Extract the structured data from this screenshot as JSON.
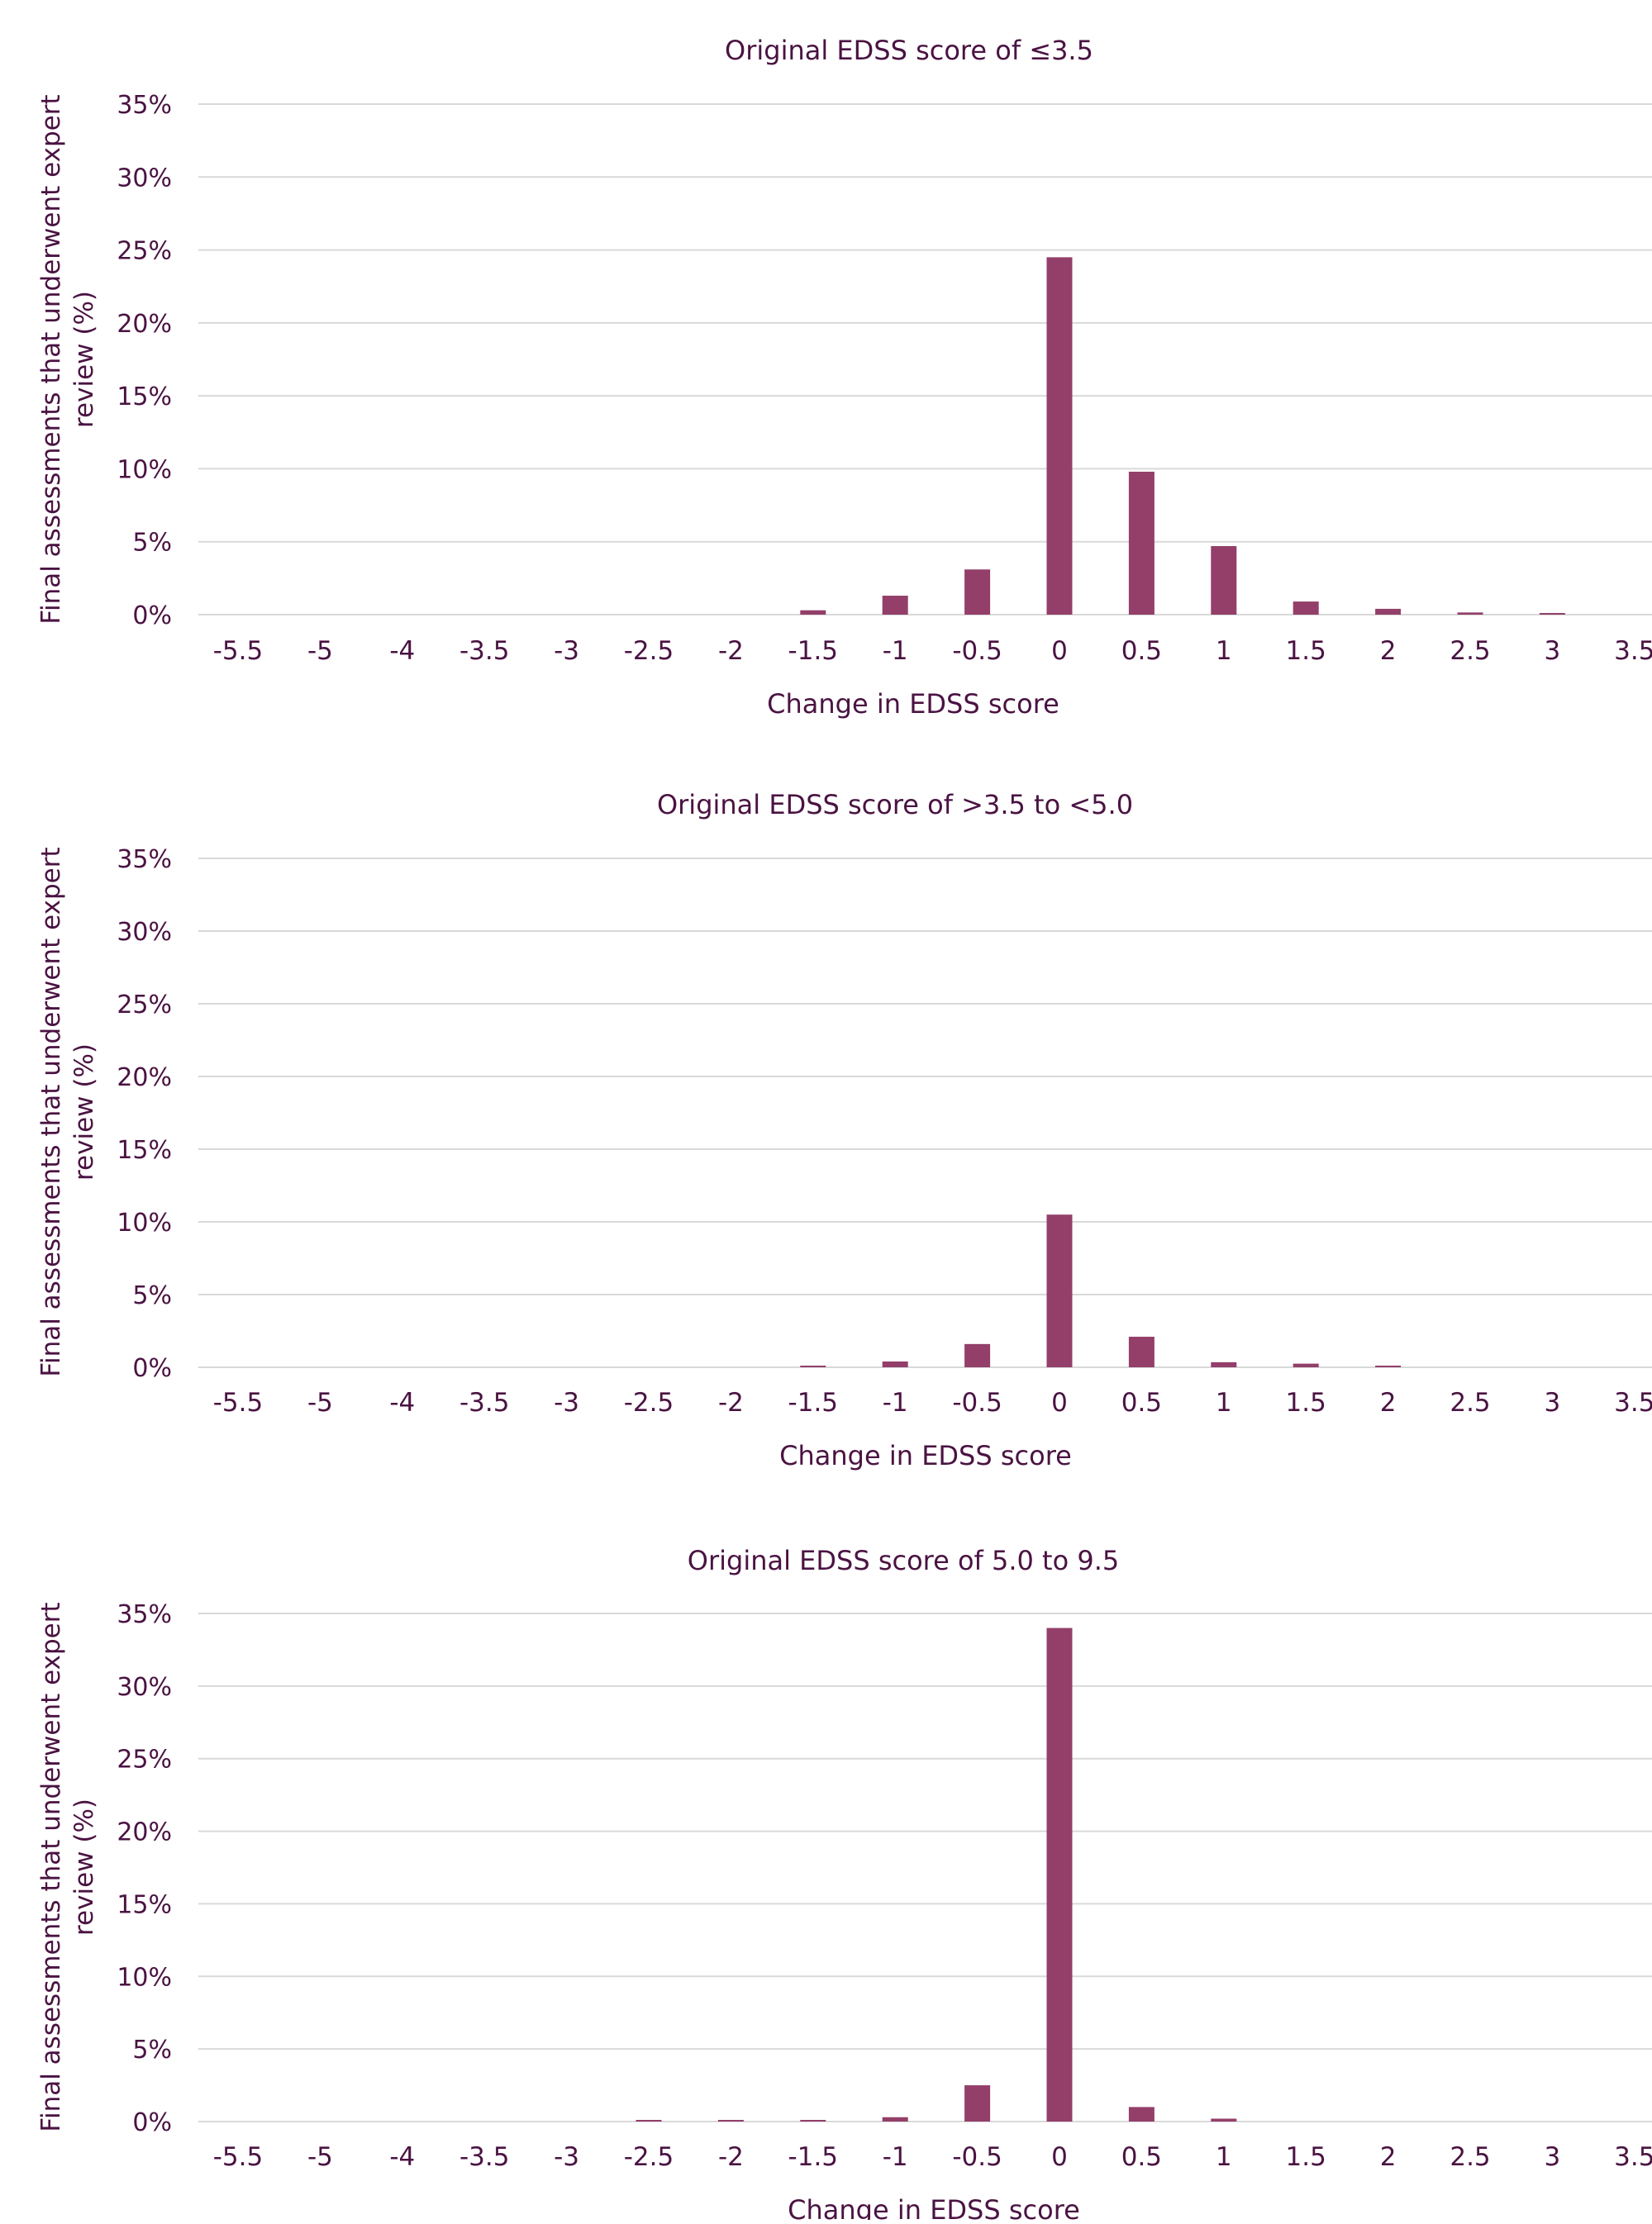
{
  "colors": {
    "bar": "#933f6a",
    "text": "#4a1342",
    "grid": "#d9d9d9"
  },
  "chart_data": [
    {
      "type": "bar",
      "title": "Original EDSS score of ≤3.5",
      "xlabel": "Change in EDSS score",
      "ylabel": "Final assessments that underwent expert review (%)",
      "ylabel_lines": [
        "Final assessments that underwent expert",
        "review (%)"
      ],
      "categories": [
        "-5.5",
        "-5",
        "-4",
        "-3.5",
        "-3",
        "-2.5",
        "-2",
        "-1.5",
        "-1",
        "-0.5",
        "0",
        "0.5",
        "1",
        "1.5",
        "2",
        "2.5",
        "3",
        "3.5"
      ],
      "values": [
        0,
        0,
        0,
        0,
        0,
        0,
        0,
        0.3,
        1.3,
        3.1,
        24.5,
        9.8,
        4.7,
        0.9,
        0.4,
        0.15,
        0.05,
        0
      ],
      "yticks": [
        "0%",
        "5%",
        "10%",
        "15%",
        "20%",
        "25%",
        "30%",
        "35%"
      ],
      "ylim": [
        0,
        35
      ],
      "grid": true
    },
    {
      "type": "bar",
      "title": "Original EDSS score of >3.5 to <5.0",
      "xlabel": "Change in EDSS score",
      "ylabel": "Final assessments that underwent expert review (%)",
      "ylabel_lines": [
        "Final assessments that underwent expert",
        "review (%)"
      ],
      "categories": [
        "-5.5",
        "-5",
        "-4",
        "-3.5",
        "-3",
        "-2.5",
        "-2",
        "-1.5",
        "-1",
        "-0.5",
        "0",
        "0.5",
        "1",
        "1.5",
        "2",
        "2.5",
        "3",
        "3.5"
      ],
      "values": [
        0,
        0,
        0,
        0,
        0,
        0,
        0,
        0.05,
        0.4,
        1.6,
        10.5,
        2.1,
        0.35,
        0.25,
        0.05,
        0,
        0,
        0
      ],
      "yticks": [
        "0%",
        "5%",
        "10%",
        "15%",
        "20%",
        "25%",
        "30%",
        "35%"
      ],
      "ylim": [
        0,
        35
      ],
      "grid": true
    },
    {
      "type": "bar",
      "title": "Original EDSS score of 5.0 to 9.5",
      "xlabel": "Change in EDSS score",
      "ylabel": "Final assessments that underwent expert review (%)",
      "ylabel_lines": [
        "Final assessments that underwent expert",
        "review (%)"
      ],
      "categories": [
        "-5.5",
        "-5",
        "-4",
        "-3.5",
        "-3",
        "-2.5",
        "-2",
        "-1.5",
        "-1",
        "-0.5",
        "0",
        "0.5",
        "1",
        "1.5",
        "2",
        "2.5",
        "3",
        "3.5"
      ],
      "values": [
        0,
        0,
        0,
        0,
        0,
        0.05,
        0.1,
        0.1,
        0.3,
        2.5,
        34.0,
        1.0,
        0.2,
        0,
        0,
        0,
        0,
        0
      ],
      "yticks": [
        "0%",
        "5%",
        "10%",
        "15%",
        "20%",
        "25%",
        "30%",
        "35%"
      ],
      "ylim": [
        0,
        35
      ],
      "grid": true
    }
  ]
}
